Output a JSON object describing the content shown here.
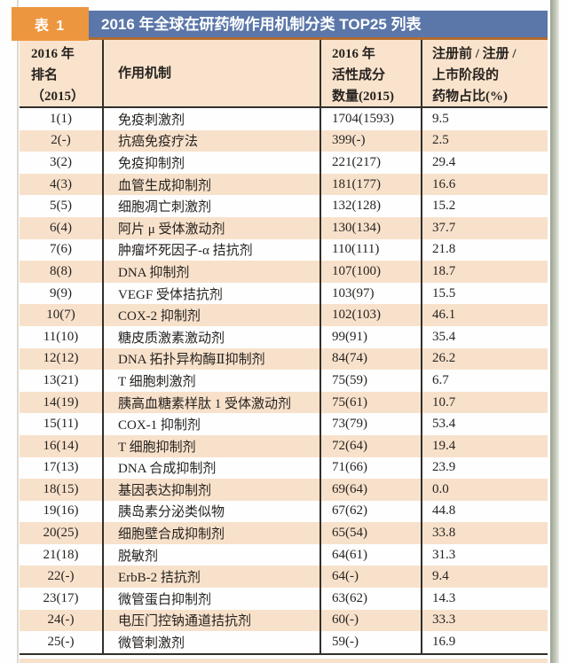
{
  "page": {
    "badge": "表 1",
    "title": "2016 年全球在研药物作用机制分类 TOP25 列表"
  },
  "theme": {
    "badge_bg": "#EC9740",
    "titlebar_bg": "#5B77A9",
    "header_bg": "#FAE3CC",
    "stripe_bg": "#F8E1CB",
    "border_dark": "#332F2A",
    "header_topline": "#B26B2E"
  },
  "table": {
    "headers": [
      {
        "lines": [
          "2016 年",
          "排名",
          "（2015）"
        ]
      },
      {
        "lines": [
          "作用机制"
        ]
      },
      {
        "lines": [
          "2016 年",
          "活性成分",
          "数量(2015)"
        ]
      },
      {
        "lines": [
          "注册前 / 注册 /",
          "上市阶段的",
          "药物占比(%)"
        ]
      }
    ],
    "rows": [
      {
        "rank": "1(1)",
        "mechanism": "免疫刺激剂",
        "count": "1704(1593)",
        "percent": "9.5"
      },
      {
        "rank": "2(-)",
        "mechanism": "抗癌免疫疗法",
        "count": "399(-)",
        "percent": "2.5"
      },
      {
        "rank": "3(2)",
        "mechanism": "免疫抑制剂",
        "count": "221(217)",
        "percent": "29.4"
      },
      {
        "rank": "4(3)",
        "mechanism": "血管生成抑制剂",
        "count": "181(177)",
        "percent": "16.6"
      },
      {
        "rank": "5(5)",
        "mechanism": "细胞凋亡刺激剂",
        "count": "132(128)",
        "percent": "15.2"
      },
      {
        "rank": "6(4)",
        "mechanism": "阿片 μ 受体激动剂",
        "count": "130(134)",
        "percent": "37.7"
      },
      {
        "rank": "7(6)",
        "mechanism": "肿瘤坏死因子-α 拮抗剂",
        "count": "110(111)",
        "percent": "21.8"
      },
      {
        "rank": "8(8)",
        "mechanism": "DNA 抑制剂",
        "count": "107(100)",
        "percent": "18.7"
      },
      {
        "rank": "9(9)",
        "mechanism": "VEGF 受体拮抗剂",
        "count": "103(97)",
        "percent": "15.5"
      },
      {
        "rank": "10(7)",
        "mechanism": "COX-2 抑制剂",
        "count": "102(103)",
        "percent": "46.1"
      },
      {
        "rank": "11(10)",
        "mechanism": "糖皮质激素激动剂",
        "count": "99(91)",
        "percent": "35.4"
      },
      {
        "rank": "12(12)",
        "mechanism": "DNA 拓扑异构酶Ⅱ抑制剂",
        "count": "84(74)",
        "percent": "26.2"
      },
      {
        "rank": "13(21)",
        "mechanism": "T 细胞刺激剂",
        "count": "75(59)",
        "percent": "6.7"
      },
      {
        "rank": "14(19)",
        "mechanism": "胰高血糖素样肽 1 受体激动剂",
        "count": "75(61)",
        "percent": "10.7"
      },
      {
        "rank": "15(11)",
        "mechanism": "COX-1 抑制剂",
        "count": "73(79)",
        "percent": "53.4"
      },
      {
        "rank": "16(14)",
        "mechanism": "T 细胞抑制剂",
        "count": "72(64)",
        "percent": "19.4"
      },
      {
        "rank": "17(13)",
        "mechanism": "DNA 合成抑制剂",
        "count": "71(66)",
        "percent": "23.9"
      },
      {
        "rank": "18(15)",
        "mechanism": "基因表达抑制剂",
        "count": "69(64)",
        "percent": "0.0"
      },
      {
        "rank": "19(16)",
        "mechanism": "胰岛素分泌类似物",
        "count": "67(62)",
        "percent": "44.8"
      },
      {
        "rank": "20(25)",
        "mechanism": "细胞壁合成抑制剂",
        "count": "65(54)",
        "percent": "33.8"
      },
      {
        "rank": "21(18)",
        "mechanism": "脱敏剂",
        "count": "64(61)",
        "percent": "31.3"
      },
      {
        "rank": "22(-)",
        "mechanism": "ErbB-2 拮抗剂",
        "count": "64(-)",
        "percent": "9.4"
      },
      {
        "rank": "23(17)",
        "mechanism": "微管蛋白抑制剂",
        "count": "63(62)",
        "percent": "14.3"
      },
      {
        "rank": "24(-)",
        "mechanism": "电压门控钠通道拮抗剂",
        "count": "60(-)",
        "percent": "33.3"
      },
      {
        "rank": "25(-)",
        "mechanism": "微管刺激剂",
        "count": "59(-)",
        "percent": "16.9"
      }
    ]
  }
}
